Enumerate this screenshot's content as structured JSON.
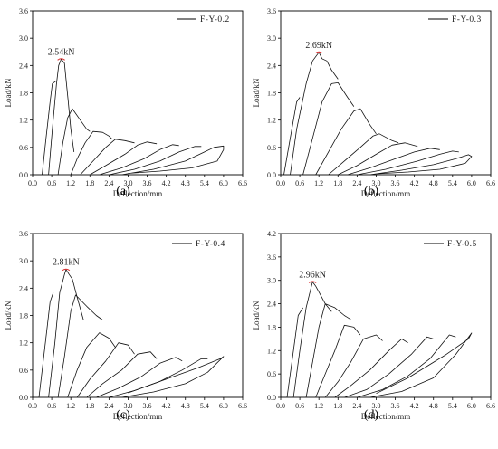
{
  "chart_data": [
    {
      "type": "line",
      "legend": "F-Y-0.2",
      "peak_label": "2.54kN",
      "caption": "(a)",
      "xlabel": "Deflection/mm",
      "ylabel": "Load/kN",
      "xlim": [
        0,
        6.6
      ],
      "ylim": [
        0,
        3.6
      ],
      "xticks": [
        "0.0",
        "0.6",
        "1.2",
        "1.8",
        "2.4",
        "3.0",
        "3.6",
        "4.2",
        "4.8",
        "5.4",
        "6.0",
        "6.6"
      ],
      "yticks": [
        "0.0",
        "0.6",
        "1.2",
        "1.8",
        "2.4",
        "3.0",
        "3.6"
      ],
      "peak": [
        0.9,
        2.54
      ],
      "series": [
        {
          "x": [
            0.3,
            0.42,
            0.55,
            0.62,
            0.72
          ],
          "y": [
            0,
            0.8,
            1.6,
            2.0,
            2.05
          ]
        },
        {
          "x": [
            0.5,
            0.62,
            0.75,
            0.82,
            0.9,
            1.0,
            1.05,
            1.12,
            1.2,
            1.3
          ],
          "y": [
            0,
            1.0,
            2.0,
            2.4,
            2.54,
            2.45,
            2.1,
            1.6,
            1.0,
            0.5
          ]
        },
        {
          "x": [
            0.8,
            0.95,
            1.1,
            1.25,
            1.5,
            1.7,
            1.8
          ],
          "y": [
            0,
            0.7,
            1.25,
            1.45,
            1.2,
            1.0,
            0.95
          ]
        },
        {
          "x": [
            1.2,
            1.4,
            1.65,
            1.9,
            2.2,
            2.4,
            2.5
          ],
          "y": [
            0,
            0.35,
            0.7,
            0.95,
            0.93,
            0.85,
            0.78
          ]
        },
        {
          "x": [
            1.5,
            1.9,
            2.3,
            2.6,
            2.9,
            3.2
          ],
          "y": [
            0,
            0.3,
            0.6,
            0.78,
            0.75,
            0.7
          ]
        },
        {
          "x": [
            1.8,
            2.3,
            2.9,
            3.3,
            3.6,
            3.9
          ],
          "y": [
            0,
            0.2,
            0.45,
            0.65,
            0.72,
            0.68
          ]
        },
        {
          "x": [
            2.1,
            2.8,
            3.5,
            4.0,
            4.4,
            4.6
          ],
          "y": [
            0,
            0.15,
            0.35,
            0.55,
            0.66,
            0.64
          ]
        },
        {
          "x": [
            2.4,
            3.2,
            4.0,
            4.6,
            5.1,
            5.3
          ],
          "y": [
            0,
            0.12,
            0.3,
            0.5,
            0.62,
            0.62
          ]
        },
        {
          "x": [
            2.8,
            3.8,
            4.8,
            5.4,
            5.7,
            6.0,
            6.0,
            5.8,
            5.0,
            4.0,
            3.0
          ],
          "y": [
            0,
            0.12,
            0.3,
            0.5,
            0.6,
            0.63,
            0.55,
            0.3,
            0.15,
            0.08,
            0.03
          ]
        }
      ]
    },
    {
      "type": "line",
      "legend": "F-Y-0.3",
      "peak_label": "2.69kN",
      "caption": "(b)",
      "xlabel": "Deflection/mm",
      "ylabel": "Load/kN",
      "xlim": [
        0,
        6.6
      ],
      "ylim": [
        0,
        3.6
      ],
      "xticks": [
        "0.0",
        "0.6",
        "1.2",
        "1.8",
        "2.4",
        "3.0",
        "3.6",
        "4.2",
        "4.8",
        "5.4",
        "6.0",
        "6.6"
      ],
      "yticks": [
        "0.0",
        "0.6",
        "1.2",
        "1.8",
        "2.4",
        "3.0",
        "3.6"
      ],
      "peak": [
        1.2,
        2.69
      ],
      "series": [
        {
          "x": [
            0.1,
            0.3,
            0.5,
            0.6
          ],
          "y": [
            0,
            0.8,
            1.6,
            1.7
          ]
        },
        {
          "x": [
            0.3,
            0.5,
            0.8,
            1.0,
            1.2,
            1.3,
            1.45,
            1.6,
            1.8
          ],
          "y": [
            0,
            1.0,
            2.0,
            2.5,
            2.69,
            2.55,
            2.5,
            2.3,
            2.1
          ]
        },
        {
          "x": [
            0.7,
            1.0,
            1.3,
            1.6,
            1.8,
            2.1,
            2.3
          ],
          "y": [
            0,
            0.8,
            1.6,
            2.0,
            2.02,
            1.7,
            1.5
          ]
        },
        {
          "x": [
            1.1,
            1.5,
            1.9,
            2.3,
            2.5,
            2.8,
            3.0
          ],
          "y": [
            0,
            0.5,
            1.0,
            1.4,
            1.45,
            1.1,
            0.9
          ]
        },
        {
          "x": [
            1.5,
            2.0,
            2.5,
            2.9,
            3.1,
            3.5,
            3.7
          ],
          "y": [
            0,
            0.3,
            0.6,
            0.85,
            0.9,
            0.75,
            0.7
          ]
        },
        {
          "x": [
            1.8,
            2.4,
            3.0,
            3.5,
            3.9,
            4.3
          ],
          "y": [
            0,
            0.2,
            0.45,
            0.65,
            0.7,
            0.62
          ]
        },
        {
          "x": [
            2.1,
            2.8,
            3.6,
            4.2,
            4.7,
            5.0
          ],
          "y": [
            0,
            0.15,
            0.35,
            0.5,
            0.58,
            0.55
          ]
        },
        {
          "x": [
            2.4,
            3.3,
            4.3,
            5.0,
            5.4,
            5.6
          ],
          "y": [
            0,
            0.12,
            0.3,
            0.45,
            0.52,
            0.5
          ]
        },
        {
          "x": [
            2.8,
            3.8,
            4.8,
            5.5,
            5.9,
            6.0,
            5.8,
            5.0,
            4.0,
            3.0
          ],
          "y": [
            0,
            0.1,
            0.22,
            0.35,
            0.44,
            0.4,
            0.25,
            0.12,
            0.06,
            0.02
          ]
        }
      ]
    },
    {
      "type": "line",
      "legend": "F-Y-0.4",
      "peak_label": "2.81kN",
      "caption": "(c)",
      "xlabel": "Deflection/mm",
      "ylabel": "Load/kN",
      "xlim": [
        0,
        6.6
      ],
      "ylim": [
        0,
        3.6
      ],
      "xticks": [
        "0.0",
        "0.6",
        "1.2",
        "1.8",
        "2.4",
        "3.0",
        "3.6",
        "4.2",
        "4.8",
        "5.4",
        "6.0",
        "6.6"
      ],
      "yticks": [
        "0.0",
        "0.6",
        "1.2",
        "1.8",
        "2.4",
        "3.0",
        "3.6"
      ],
      "peak": [
        1.05,
        2.81
      ],
      "series": [
        {
          "x": [
            0.2,
            0.4,
            0.55,
            0.65
          ],
          "y": [
            0,
            1.2,
            2.1,
            2.3
          ]
        },
        {
          "x": [
            0.5,
            0.7,
            0.85,
            1.0,
            1.05,
            1.15,
            1.25,
            1.4,
            1.6
          ],
          "y": [
            0,
            1.2,
            2.3,
            2.7,
            2.81,
            2.7,
            2.6,
            2.2,
            1.7
          ]
        },
        {
          "x": [
            0.8,
            1.0,
            1.2,
            1.35,
            1.7,
            2.0,
            2.2
          ],
          "y": [
            0,
            0.9,
            1.9,
            2.25,
            2.0,
            1.8,
            1.7
          ]
        },
        {
          "x": [
            1.1,
            1.4,
            1.7,
            2.1,
            2.4,
            2.6
          ],
          "y": [
            0,
            0.6,
            1.1,
            1.42,
            1.3,
            1.1
          ]
        },
        {
          "x": [
            1.4,
            1.8,
            2.3,
            2.7,
            3.0,
            3.2
          ],
          "y": [
            0,
            0.4,
            0.8,
            1.2,
            1.15,
            0.95
          ]
        },
        {
          "x": [
            1.7,
            2.2,
            2.8,
            3.3,
            3.7,
            3.9
          ],
          "y": [
            0,
            0.3,
            0.6,
            0.95,
            1.0,
            0.85
          ]
        },
        {
          "x": [
            2.0,
            2.7,
            3.4,
            4.0,
            4.5,
            4.7
          ],
          "y": [
            0,
            0.2,
            0.45,
            0.75,
            0.88,
            0.8
          ]
        },
        {
          "x": [
            2.4,
            3.2,
            4.0,
            4.7,
            5.3,
            5.5
          ],
          "y": [
            0,
            0.15,
            0.35,
            0.6,
            0.85,
            0.85
          ]
        },
        {
          "x": [
            2.8,
            3.8,
            4.8,
            5.5,
            6.0,
            5.9,
            5.2,
            4.0,
            3.0
          ],
          "y": [
            0,
            0.12,
            0.3,
            0.55,
            0.9,
            0.85,
            0.65,
            0.35,
            0.1
          ]
        }
      ]
    },
    {
      "type": "line",
      "legend": "F-Y-0.5",
      "peak_label": "2.96kN",
      "caption": "(d)",
      "xlabel": "Deflection/mm",
      "ylabel": "Load/kN",
      "xlim": [
        0,
        6.6
      ],
      "ylim": [
        0,
        4.2
      ],
      "xticks": [
        "0.0",
        "0.6",
        "1.2",
        "1.8",
        "2.4",
        "3.0",
        "3.6",
        "4.2",
        "4.8",
        "5.4",
        "6.0",
        "6.6"
      ],
      "yticks": [
        "0.0",
        "0.6",
        "1.2",
        "1.8",
        "2.4",
        "3.0",
        "3.6",
        "4.2"
      ],
      "peak": [
        1.0,
        2.96
      ],
      "series": [
        {
          "x": [
            0.2,
            0.4,
            0.55,
            0.7
          ],
          "y": [
            0,
            1.2,
            2.1,
            2.3
          ]
        },
        {
          "x": [
            0.4,
            0.6,
            0.8,
            0.95,
            1.0,
            1.1,
            1.2,
            1.4,
            1.6
          ],
          "y": [
            0,
            1.2,
            2.3,
            2.8,
            2.96,
            2.85,
            2.7,
            2.4,
            2.2
          ]
        },
        {
          "x": [
            0.8,
            1.0,
            1.2,
            1.4,
            1.7,
            2.0,
            2.2
          ],
          "y": [
            0,
            0.9,
            1.8,
            2.4,
            2.3,
            2.1,
            2.0
          ]
        },
        {
          "x": [
            1.1,
            1.4,
            1.7,
            2.0,
            2.3,
            2.5
          ],
          "y": [
            0,
            0.6,
            1.2,
            1.85,
            1.8,
            1.6
          ]
        },
        {
          "x": [
            1.4,
            1.8,
            2.2,
            2.6,
            3.0,
            3.2
          ],
          "y": [
            0,
            0.4,
            0.9,
            1.5,
            1.6,
            1.45
          ]
        },
        {
          "x": [
            1.7,
            2.2,
            2.8,
            3.4,
            3.8,
            4.0
          ],
          "y": [
            0,
            0.3,
            0.7,
            1.2,
            1.5,
            1.4
          ]
        },
        {
          "x": [
            2.0,
            2.7,
            3.4,
            4.1,
            4.6,
            4.8
          ],
          "y": [
            0,
            0.2,
            0.6,
            1.1,
            1.55,
            1.5
          ]
        },
        {
          "x": [
            2.4,
            3.2,
            4.0,
            4.7,
            5.3,
            5.5
          ],
          "y": [
            0,
            0.2,
            0.55,
            1.0,
            1.6,
            1.55
          ]
        },
        {
          "x": [
            2.8,
            3.8,
            4.8,
            5.5,
            6.0,
            5.9,
            5.2,
            4.0,
            3.0
          ],
          "y": [
            0,
            0.15,
            0.5,
            1.1,
            1.65,
            1.5,
            1.1,
            0.5,
            0.1
          ]
        }
      ]
    }
  ]
}
